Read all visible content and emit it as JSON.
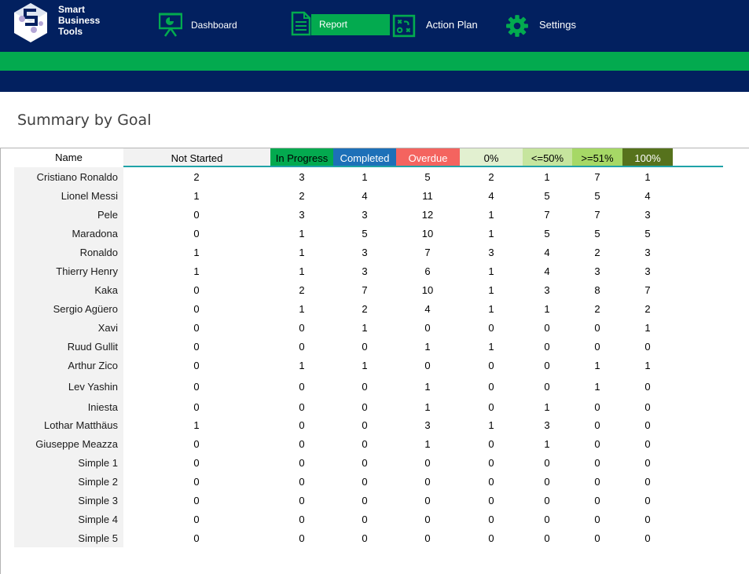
{
  "brand": {
    "line1": "Smart",
    "line2": "Business",
    "line3": "Tools"
  },
  "nav": {
    "dashboard": "Dashboard",
    "report": "Report",
    "action_plan": "Action Plan",
    "settings": "Settings"
  },
  "page_title": "Summary by Goal",
  "table": {
    "name_header": "Name",
    "columns": [
      {
        "label": "Not Started",
        "bg": "#f2f2f2",
        "color": "#000000"
      },
      {
        "label": "In Progress",
        "bg": "#03aa4f",
        "color": "#000000"
      },
      {
        "label": "Completed",
        "bg": "#1d70b8",
        "color": "#ffffff"
      },
      {
        "label": "Overdue",
        "bg": "#f4645f",
        "color": "#ffffff"
      },
      {
        "label": "0%",
        "bg": "#e2f0d0",
        "color": "#000000"
      },
      {
        "label": "<=50%",
        "bg": "#c6e59e",
        "color": "#000000"
      },
      {
        "label": ">=51%",
        "bg": "#a6d866",
        "color": "#000000"
      },
      {
        "label": "100%",
        "bg": "#56721c",
        "color": "#ffffff"
      }
    ],
    "rows": [
      {
        "name": "Cristiano Ronaldo",
        "values": [
          2,
          3,
          1,
          5,
          2,
          1,
          7,
          1
        ]
      },
      {
        "name": "Lionel Messi",
        "values": [
          1,
          2,
          4,
          11,
          4,
          5,
          5,
          4
        ]
      },
      {
        "name": "Pele",
        "values": [
          0,
          3,
          3,
          12,
          1,
          7,
          7,
          3
        ]
      },
      {
        "name": "Maradona",
        "values": [
          0,
          1,
          5,
          10,
          1,
          5,
          5,
          5
        ]
      },
      {
        "name": "Ronaldo",
        "values": [
          1,
          1,
          3,
          7,
          3,
          4,
          2,
          3
        ]
      },
      {
        "name": "Thierry Henry",
        "values": [
          1,
          1,
          3,
          6,
          1,
          4,
          3,
          3
        ]
      },
      {
        "name": "Kaka",
        "values": [
          0,
          2,
          7,
          10,
          1,
          3,
          8,
          7
        ]
      },
      {
        "name": "Sergio Agüero",
        "values": [
          0,
          1,
          2,
          4,
          1,
          1,
          2,
          2
        ]
      },
      {
        "name": "Xavi",
        "values": [
          0,
          0,
          1,
          0,
          0,
          0,
          0,
          1
        ]
      },
      {
        "name": "Ruud Gullit",
        "values": [
          0,
          0,
          0,
          1,
          1,
          0,
          0,
          0
        ]
      },
      {
        "name": "Arthur Zico",
        "values": [
          0,
          1,
          1,
          0,
          0,
          0,
          1,
          1
        ]
      },
      {
        "name": "Lev Yashin",
        "values": [
          0,
          0,
          0,
          1,
          0,
          0,
          1,
          0
        ]
      },
      {
        "name": "Iniesta",
        "values": [
          0,
          0,
          0,
          1,
          0,
          1,
          0,
          0
        ]
      },
      {
        "name": "Lothar Matthäus",
        "values": [
          1,
          0,
          0,
          3,
          1,
          3,
          0,
          0
        ]
      },
      {
        "name": "Giuseppe Meazza",
        "values": [
          0,
          0,
          0,
          1,
          0,
          1,
          0,
          0
        ]
      },
      {
        "name": "Simple 1",
        "values": [
          0,
          0,
          0,
          0,
          0,
          0,
          0,
          0
        ]
      },
      {
        "name": "Simple 2",
        "values": [
          0,
          0,
          0,
          0,
          0,
          0,
          0,
          0
        ]
      },
      {
        "name": "Simple 3",
        "values": [
          0,
          0,
          0,
          0,
          0,
          0,
          0,
          0
        ]
      },
      {
        "name": "Simple 4",
        "values": [
          0,
          0,
          0,
          0,
          0,
          0,
          0,
          0
        ]
      },
      {
        "name": "Simple 5",
        "values": [
          0,
          0,
          0,
          0,
          0,
          0,
          0,
          0
        ]
      }
    ]
  }
}
